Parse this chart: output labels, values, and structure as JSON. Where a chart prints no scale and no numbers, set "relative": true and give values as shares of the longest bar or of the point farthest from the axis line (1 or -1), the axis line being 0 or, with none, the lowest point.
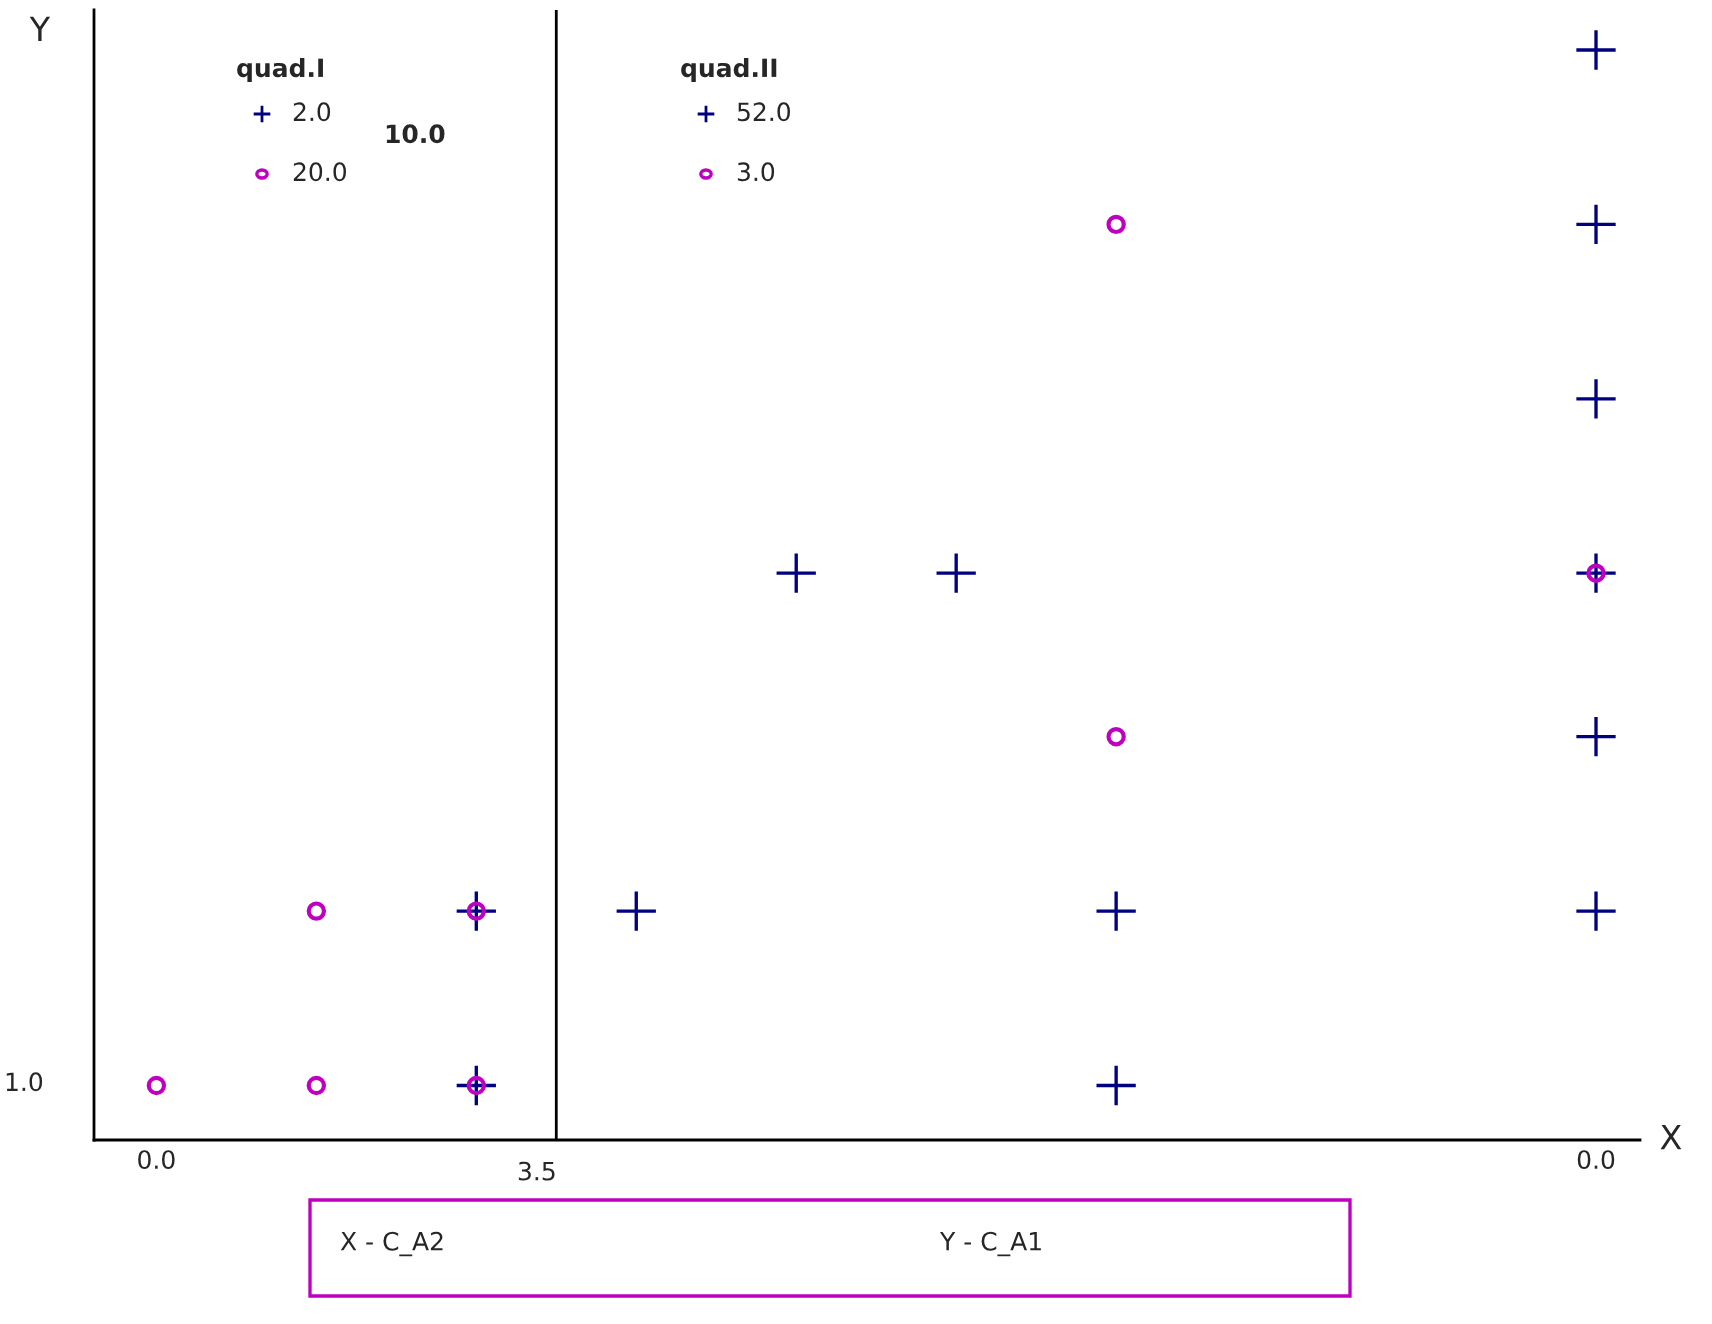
{
  "chart_data": {
    "type": "scatter",
    "xlabel": "X",
    "ylabel": "Y",
    "relative": true,
    "categories": [
      "0.0",
      null,
      null,
      null,
      null,
      null,
      null,
      null,
      null,
      "0.0"
    ],
    "series": [
      {
        "marker": "cross",
        "color": "#000080",
        "values": [
          null,
          null,
          0.21,
          0.21,
          0.52,
          0.52,
          0.21,
          null,
          null,
          1
        ]
      },
      {
        "marker": "cross",
        "color": "#000080",
        "values": [
          null,
          null,
          0.05,
          null,
          null,
          null,
          0.05,
          null,
          null,
          0.84
        ]
      },
      {
        "marker": "cross",
        "color": "#000080",
        "values": [
          null,
          null,
          null,
          null,
          null,
          null,
          null,
          null,
          null,
          0.68
        ]
      },
      {
        "marker": "cross",
        "color": "#000080",
        "values": [
          null,
          null,
          null,
          null,
          null,
          null,
          null,
          null,
          null,
          0.52
        ]
      },
      {
        "marker": "cross",
        "color": "#000080",
        "values": [
          null,
          null,
          null,
          null,
          null,
          null,
          null,
          null,
          null,
          0.37
        ]
      },
      {
        "marker": "cross",
        "color": "#000080",
        "values": [
          null,
          null,
          null,
          null,
          null,
          null,
          null,
          null,
          null,
          0.21
        ]
      },
      {
        "marker": "circle",
        "color": "#c000c0",
        "values": [
          0.05,
          0.21,
          0.21,
          null,
          null,
          null,
          0.84,
          null,
          null,
          0.52
        ]
      },
      {
        "marker": "circle",
        "color": "#c000c0",
        "values": [
          null,
          0.05,
          0.05,
          null,
          null,
          null,
          0.37,
          null,
          null,
          null
        ]
      }
    ],
    "annotations": [
      "quad.I",
      "2.0",
      "20.0",
      "10.0",
      "quad.II",
      "52.0",
      "3.0",
      "X - C_A2",
      "Y - C_A1",
      "1.0",
      "3.5"
    ]
  }
}
